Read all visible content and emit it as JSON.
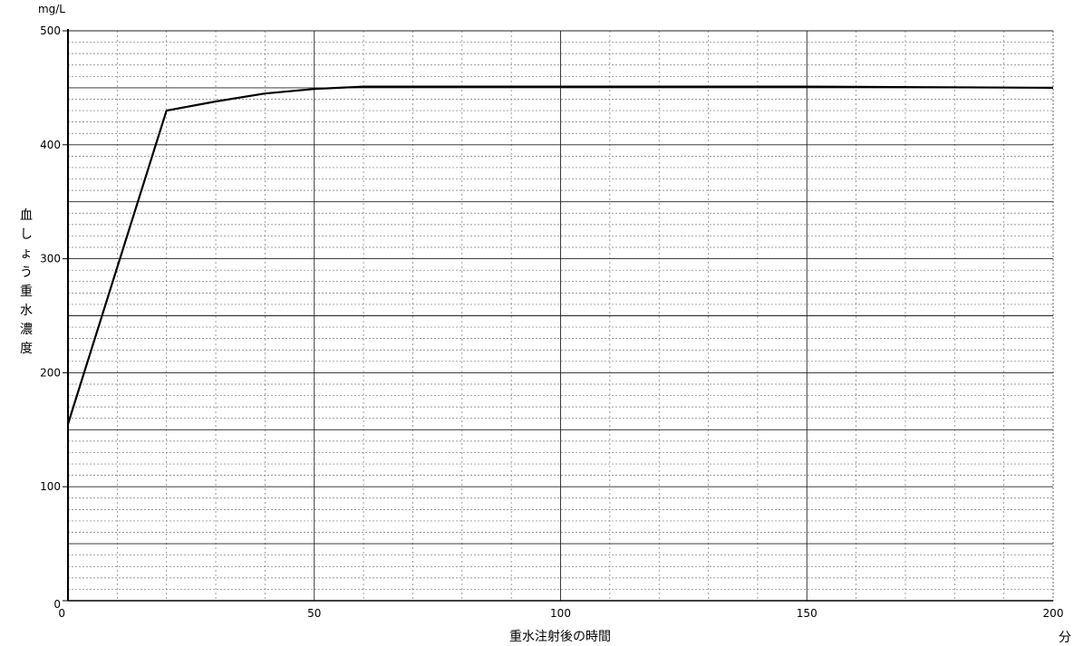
{
  "chart_data": {
    "type": "line",
    "xlabel": "重水注射後の時間",
    "x_unit": "分",
    "ylabel": "血しょう重水濃度",
    "y_unit": "mg/L",
    "xlim": [
      0,
      200
    ],
    "ylim": [
      0,
      500
    ],
    "x_ticks": [
      0,
      50,
      100,
      150,
      200
    ],
    "y_ticks": [
      0,
      100,
      200,
      300,
      400,
      500
    ],
    "grid": true,
    "legend": "none",
    "series": [
      {
        "x": [
          0,
          20,
          30,
          40,
          50,
          60,
          80,
          100,
          150,
          200
        ],
        "y": [
          155,
          430,
          438,
          445,
          449,
          451,
          451,
          451,
          451,
          450
        ]
      }
    ],
    "line_color": "#000000"
  }
}
